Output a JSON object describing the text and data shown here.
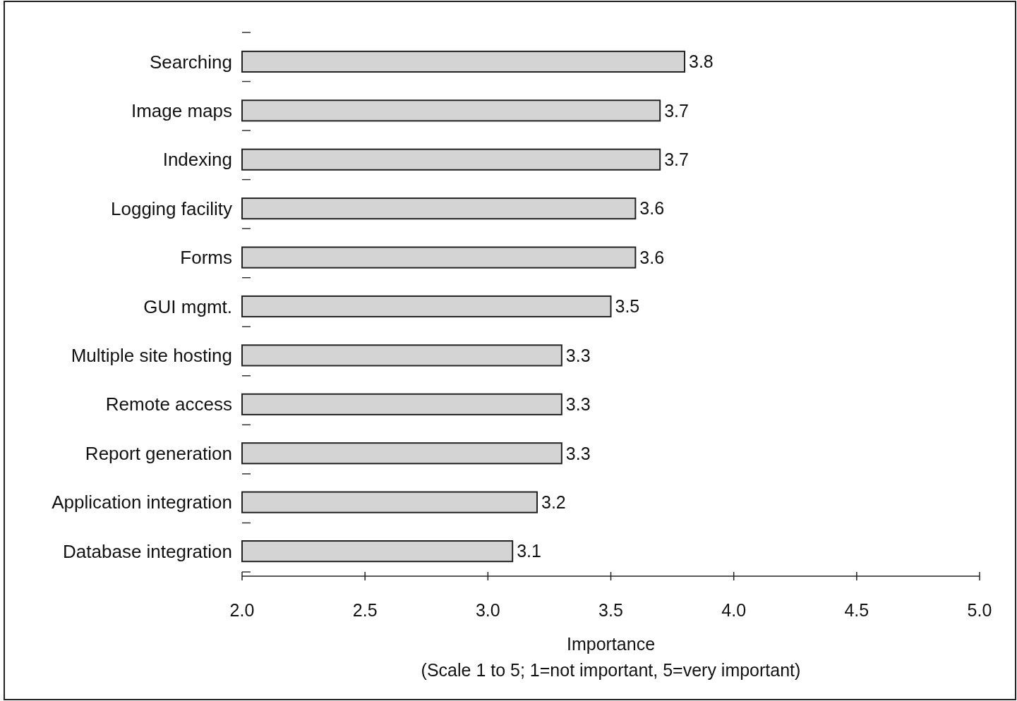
{
  "chart_data": {
    "type": "bar",
    "orientation": "horizontal",
    "categories": [
      "Searching",
      "Image maps",
      "Indexing",
      "Logging facility",
      "Forms",
      "GUI mgmt.",
      "Multiple site hosting",
      "Remote access",
      "Report generation",
      "Application integration",
      "Database integration"
    ],
    "values": [
      3.8,
      3.7,
      3.7,
      3.6,
      3.6,
      3.5,
      3.3,
      3.3,
      3.3,
      3.2,
      3.1
    ],
    "color": "#d4d4d4",
    "data_labels": true,
    "xlim": [
      2.0,
      5.0
    ],
    "xticks": [
      {
        "value": 2,
        "label": "2.0"
      },
      {
        "value": 2.5,
        "label": "2.5"
      },
      {
        "value": 3,
        "label": "3.0"
      },
      {
        "value": 3.5,
        "label": "3.5"
      },
      {
        "value": 4,
        "label": "4.0"
      },
      {
        "value": 4.5,
        "label": "4.5"
      },
      {
        "value": 5,
        "label": "5.0"
      }
    ],
    "xlabel": "Importance\n(Scale 1 to 5; 1=not important, 5=very important)",
    "grid": false
  }
}
